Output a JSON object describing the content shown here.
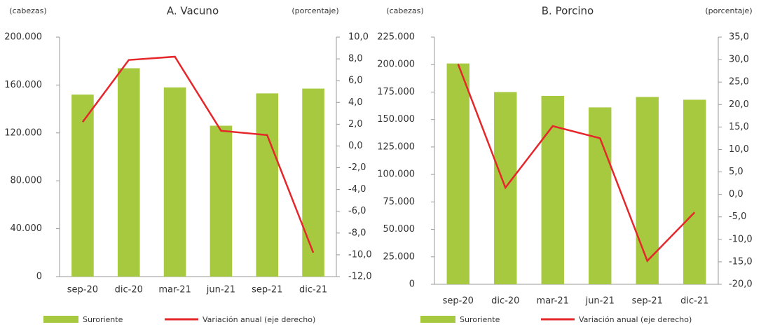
{
  "chart_data": [
    {
      "type": "bar",
      "title": "A. Vacuno",
      "ylabel": "(cabezas)",
      "y2label": "(porcentaje)",
      "categories": [
        "sep-20",
        "dic-20",
        "mar-21",
        "jun-21",
        "sep-21",
        "dic-21"
      ],
      "series": [
        {
          "name": "Suroriente",
          "type": "bar",
          "color": "#a6c93f",
          "values": [
            152000,
            174000,
            158000,
            126000,
            153000,
            157000
          ]
        },
        {
          "name": "Variación anual (eje derecho)",
          "type": "line",
          "axis": "y2",
          "color": "#e5262a",
          "values": [
            2.2,
            7.9,
            8.2,
            1.4,
            1.0,
            -9.8
          ]
        }
      ],
      "ylim": [
        0,
        200000
      ],
      "yticks": [
        0,
        {
          "value": 40000,
          "label": "40.000"
        },
        {
          "value": 80000,
          "label": "80.000"
        },
        {
          "value": 120000,
          "label": "120.000"
        },
        {
          "value": 160000,
          "label": "160.000"
        },
        {
          "value": 200000,
          "label": "200.000"
        }
      ],
      "y2lim": [
        -12,
        10
      ],
      "y2ticks": [
        {
          "value": -12,
          "label": "-12,0"
        },
        {
          "value": -10,
          "label": "-10,0"
        },
        {
          "value": -8,
          "label": "-8,0"
        },
        {
          "value": -6,
          "label": "-6,0"
        },
        {
          "value": -4,
          "label": "-4,0"
        },
        {
          "value": -2,
          "label": "-2,0"
        },
        {
          "value": 0,
          "label": "0,0"
        },
        {
          "value": 2,
          "label": "2,0"
        },
        {
          "value": 4,
          "label": "4,0"
        },
        {
          "value": 6,
          "label": "6,0"
        },
        {
          "value": 8,
          "label": "8,0"
        },
        {
          "value": 10,
          "label": "10,0"
        }
      ]
    },
    {
      "type": "bar",
      "title": "B. Porcino",
      "ylabel": "(cabezas)",
      "y2label": "(porcentaje)",
      "categories": [
        "sep-20",
        "dic-20",
        "mar-21",
        "jun-21",
        "sep-21",
        "dic-21"
      ],
      "series": [
        {
          "name": "Suroriente",
          "type": "bar",
          "color": "#a6c93f",
          "values": [
            201000,
            175000,
            171500,
            161000,
            170500,
            168000
          ]
        },
        {
          "name": "Variación anual (eje derecho)",
          "type": "line",
          "axis": "y2",
          "color": "#e5262a",
          "values": [
            29.0,
            1.5,
            15.2,
            12.5,
            -14.8,
            -4.0
          ]
        }
      ],
      "ylim": [
        0,
        225000
      ],
      "yticks": [
        0,
        {
          "value": 25000,
          "label": "25.000"
        },
        {
          "value": 50000,
          "label": "50.000"
        },
        {
          "value": 75000,
          "label": "75.000"
        },
        {
          "value": 100000,
          "label": "100.000"
        },
        {
          "value": 125000,
          "label": "125.000"
        },
        {
          "value": 150000,
          "label": "150.000"
        },
        {
          "value": 175000,
          "label": "175.000"
        },
        {
          "value": 200000,
          "label": "200.000"
        },
        {
          "value": 225000,
          "label": "225.000"
        }
      ],
      "y2lim": [
        -20,
        35
      ],
      "y2ticks": [
        {
          "value": -20,
          "label": "-20,0"
        },
        {
          "value": -15,
          "label": "-15,0"
        },
        {
          "value": -10,
          "label": "-10,0"
        },
        {
          "value": -5,
          "label": "-5,0"
        },
        {
          "value": 0,
          "label": "0,0"
        },
        {
          "value": 5,
          "label": "5,0"
        },
        {
          "value": 10,
          "label": "10,0"
        },
        {
          "value": 15,
          "label": "15,0"
        },
        {
          "value": 20,
          "label": "20,0"
        },
        {
          "value": 25,
          "label": "25,0"
        },
        {
          "value": 30,
          "label": "30,0"
        },
        {
          "value": 35,
          "label": "35,0"
        }
      ]
    }
  ]
}
